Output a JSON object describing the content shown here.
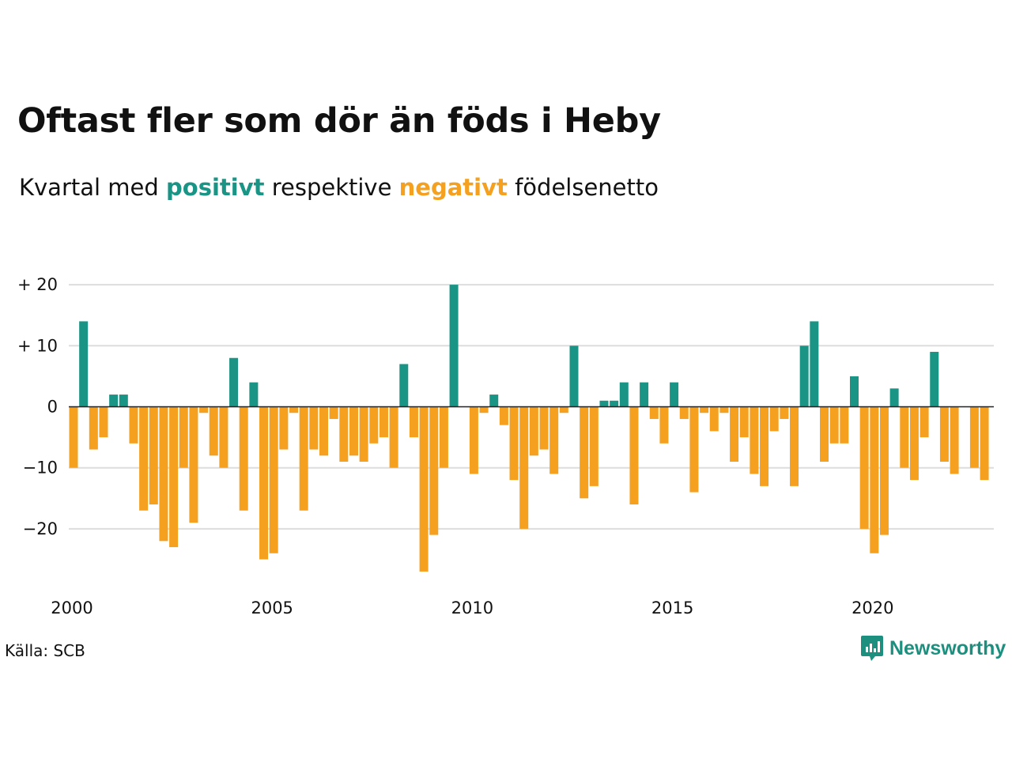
{
  "title": "Oftast fler som dör än föds i Heby",
  "subtitle": {
    "before": "Kvartal med ",
    "positive_word": "positivt",
    "middle": " respektive ",
    "negative_word": "negativt",
    "after": " födelsenetto"
  },
  "source": "Källa: SCB",
  "brand": {
    "name": "Newsworthy",
    "icon": "newsworthy-logo-icon"
  },
  "colors": {
    "positive": "#1a9485",
    "negative": "#f5a01e",
    "grid": "#dddddd",
    "zero_line": "#222222"
  },
  "chart_data": {
    "type": "bar",
    "title": "Oftast fler som dör än föds i Heby",
    "subtitle": "Kvartal med positivt respektive negativt födelsenetto",
    "xlabel": "",
    "ylabel": "",
    "x_start": "2000 Q1",
    "x_step": "quarter",
    "x_ticks": [
      {
        "value": 2000,
        "label": "2000"
      },
      {
        "value": 2005,
        "label": "2005"
      },
      {
        "value": 2010,
        "label": "2010"
      },
      {
        "value": 2015,
        "label": "2015"
      },
      {
        "value": 2020,
        "label": "2020"
      }
    ],
    "y_ticks": [
      {
        "value": 20,
        "label": "+ 20"
      },
      {
        "value": 10,
        "label": "+ 10"
      },
      {
        "value": 0,
        "label": "0"
      },
      {
        "value": -10,
        "label": "−10"
      },
      {
        "value": -20,
        "label": "−20"
      }
    ],
    "ylim": [
      -28,
      20
    ],
    "grid": true,
    "legend": "none",
    "values": [
      -10,
      14,
      -7,
      -5,
      2,
      2,
      -6,
      -17,
      -16,
      -22,
      -23,
      -10,
      -19,
      -1,
      -8,
      -10,
      8,
      -17,
      4,
      -25,
      -24,
      -7,
      -1,
      -17,
      -7,
      -8,
      -2,
      -9,
      -8,
      -9,
      -6,
      -5,
      -10,
      7,
      -5,
      -27,
      -21,
      -10,
      20,
      0,
      -11,
      -1,
      2,
      -3,
      -12,
      -20,
      -8,
      -7,
      -11,
      -1,
      10,
      -15,
      -13,
      1,
      1,
      4,
      -16,
      4,
      -2,
      -6,
      4,
      -2,
      -14,
      -1,
      -4,
      -1,
      -9,
      -5,
      -11,
      -13,
      -4,
      -2,
      -13,
      10,
      14,
      -9,
      -6,
      -6,
      5,
      -20,
      -24,
      -21,
      3,
      -10,
      -12,
      -5,
      9,
      -9,
      -11,
      0,
      -10,
      -12
    ]
  }
}
